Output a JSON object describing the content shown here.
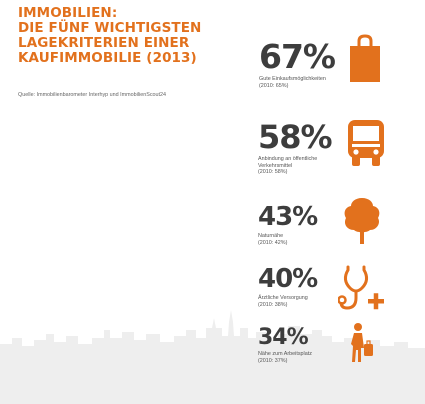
{
  "title": {
    "lines": [
      "IMMOBILIEN:",
      "DIE FÜNF WICHTIGSTEN",
      "LAGEKRITERIEN EINER",
      "KAUFIMMOBILIE (2013)"
    ]
  },
  "source": "Quelle: Immobilienbarometer Interhyp und ImmobilienScout24",
  "colors": {
    "accent": "#e2711d",
    "number": "#3d3d3d",
    "skyline": "#eeeeee"
  },
  "chart_data": {
    "type": "table",
    "unit": "%",
    "rows": [
      {
        "label_lines": [
          "Gute Einkaufsmöglichkeiten"
        ],
        "value": 67,
        "value_label": "67%",
        "previous_label": "(2010: 65%)",
        "previous": 65,
        "icon": "shopping-bag-icon"
      },
      {
        "label_lines": [
          "Anbindung an öffentliche",
          "Verkehrsmittel"
        ],
        "value": 58,
        "value_label": "58%",
        "previous_label": "(2010: 58%)",
        "previous": 58,
        "icon": "bus-icon"
      },
      {
        "label_lines": [
          "Naturnähe"
        ],
        "value": 43,
        "value_label": "43%",
        "previous_label": "(2010: 42%)",
        "previous": 42,
        "icon": "tree-icon"
      },
      {
        "label_lines": [
          "Ärztliche Versorgung"
        ],
        "value": 40,
        "value_label": "40%",
        "previous_label": "(2010: 38%)",
        "previous": 38,
        "icon": "stethoscope-icon"
      },
      {
        "label_lines": [
          "Nähe zum Arbeitsplatz"
        ],
        "value": 34,
        "value_label": "34%",
        "previous_label": "(2010: 37%)",
        "previous": 37,
        "icon": "commuter-icon"
      }
    ]
  }
}
